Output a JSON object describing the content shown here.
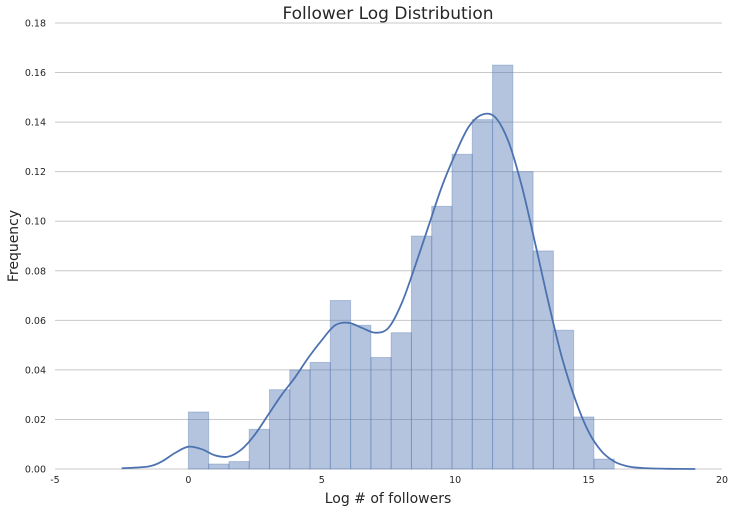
{
  "chart_data": {
    "type": "bar",
    "title": "Follower Log Distribution",
    "xlabel": "Log # of followers",
    "ylabel": "Frequency",
    "xlim": [
      -5,
      20
    ],
    "ylim": [
      0,
      0.18
    ],
    "xticks": [
      "-5",
      "0",
      "5",
      "10",
      "15",
      "20"
    ],
    "yticks": [
      "0.00",
      "0.02",
      "0.04",
      "0.06",
      "0.08",
      "0.10",
      "0.12",
      "0.14",
      "0.16",
      "0.18"
    ],
    "grid": true,
    "histogram": {
      "bin_edges": [
        0,
        0.76,
        1.52,
        2.28,
        3.04,
        3.8,
        4.56,
        5.32,
        6.08,
        6.84,
        7.6,
        8.36,
        9.12,
        9.88,
        10.64,
        11.4,
        12.16,
        12.92,
        13.68,
        14.44,
        15.2,
        15.96
      ],
      "values": [
        0.023,
        0.002,
        0.003,
        0.016,
        0.032,
        0.04,
        0.043,
        0.068,
        0.058,
        0.045,
        0.055,
        0.094,
        0.106,
        0.127,
        0.141,
        0.163,
        0.12,
        0.088,
        0.056,
        0.021,
        0.004
      ]
    },
    "kde": {
      "x": [
        -2.5,
        -1.5,
        -1,
        -0.5,
        0,
        0.5,
        1,
        1.5,
        2,
        2.5,
        3,
        3.5,
        4,
        4.5,
        5,
        5.5,
        6,
        6.5,
        7,
        7.5,
        8,
        8.5,
        9,
        9.5,
        10,
        10.5,
        11,
        11.5,
        12,
        12.5,
        13,
        13.5,
        14,
        14.5,
        15,
        15.5,
        16,
        16.5,
        17,
        18,
        19
      ],
      "y": [
        0.0003,
        0.001,
        0.003,
        0.0065,
        0.009,
        0.008,
        0.0055,
        0.005,
        0.008,
        0.014,
        0.022,
        0.03,
        0.037,
        0.045,
        0.052,
        0.058,
        0.059,
        0.057,
        0.055,
        0.057,
        0.067,
        0.082,
        0.098,
        0.114,
        0.127,
        0.138,
        0.143,
        0.142,
        0.132,
        0.114,
        0.091,
        0.067,
        0.045,
        0.028,
        0.015,
        0.007,
        0.0028,
        0.001,
        0.0004,
        0.0001,
        0
      ]
    }
  }
}
